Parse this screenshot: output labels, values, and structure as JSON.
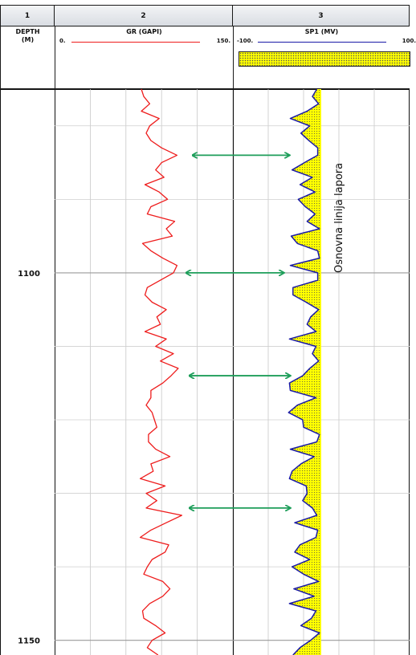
{
  "tracks": [
    {
      "number": "1",
      "title": "DEPTH\n(M)"
    },
    {
      "number": "2",
      "title": "GR (GAPI)",
      "scale_min": "0.",
      "scale_max": "150.",
      "color": "#ee1c1c"
    },
    {
      "number": "3",
      "title": "SP1 (MV)",
      "scale_min": "-100.",
      "scale_max": "100.",
      "color": "#1a1aa8",
      "fill_color": "#ffff00"
    }
  ],
  "annotation": "Osnovna linija lapora",
  "arrow_color": "#1e9e5a",
  "chart_data": {
    "type": "line",
    "title": "",
    "depth_unit": "M",
    "y_axis": "depth",
    "ylim": [
      1075,
      1152
    ],
    "depth_ticks": [
      1100,
      1150
    ],
    "depth_tick_labels": [
      "1100",
      "1150"
    ],
    "grid": true,
    "series": [
      {
        "name": "GR (GAPI)",
        "xlim": [
          0,
          150
        ],
        "depth": [
          1075.0,
          1076.0,
          1077.0,
          1078.0,
          1079.0,
          1080.0,
          1081.0,
          1082.0,
          1083.0,
          1084.0,
          1085.0,
          1086.0,
          1087.0,
          1088.0,
          1089.0,
          1090.0,
          1091.0,
          1092.0,
          1093.0,
          1094.0,
          1095.0,
          1096.0,
          1097.0,
          1098.0,
          1099.0,
          1100.0,
          1101.0,
          1102.0,
          1103.0,
          1104.0,
          1105.0,
          1106.0,
          1107.0,
          1108.0,
          1109.0,
          1110.0,
          1111.0,
          1112.0,
          1113.0,
          1114.0,
          1115.0,
          1116.0,
          1117.0,
          1118.0,
          1119.0,
          1120.0,
          1121.0,
          1122.0,
          1123.0,
          1124.0,
          1125.0,
          1126.0,
          1127.0,
          1128.0,
          1129.0,
          1130.0,
          1131.0,
          1132.0,
          1133.0,
          1134.0,
          1135.0,
          1136.0,
          1137.0,
          1138.0,
          1139.0,
          1140.0,
          1141.0,
          1142.0,
          1143.0,
          1144.0,
          1145.0,
          1146.0,
          1147.0,
          1148.0,
          1149.0,
          1150.0,
          1151.0,
          1152.0
        ],
        "values": [
          73,
          75,
          80,
          73,
          88,
          80,
          77,
          81,
          90,
          103,
          90,
          85,
          92,
          76,
          88,
          95,
          81,
          78,
          101,
          94,
          99,
          74,
          81,
          91,
          103,
          100,
          89,
          78,
          76,
          82,
          94,
          86,
          89,
          76,
          94,
          85,
          100,
          89,
          104,
          98,
          91,
          81,
          81,
          77,
          82,
          84,
          86,
          79,
          79,
          85,
          97,
          81,
          83,
          72,
          93,
          77,
          86,
          77,
          107,
          94,
          81,
          72,
          96,
          93,
          82,
          78,
          75,
          91,
          97,
          91,
          80,
          74,
          75,
          85,
          93,
          82,
          78,
          87
        ]
      },
      {
        "name": "SP1 (MV)",
        "xlim": [
          -100,
          100
        ],
        "depth": [
          1075.0,
          1076.0,
          1077.0,
          1078.0,
          1079.0,
          1080.0,
          1081.0,
          1082.0,
          1083.0,
          1084.0,
          1085.0,
          1086.0,
          1087.0,
          1088.0,
          1089.0,
          1090.0,
          1091.0,
          1092.0,
          1093.0,
          1094.0,
          1095.0,
          1096.0,
          1097.0,
          1098.0,
          1099.0,
          1100.0,
          1101.0,
          1102.0,
          1103.0,
          1104.0,
          1105.0,
          1106.0,
          1107.0,
          1108.0,
          1109.0,
          1110.0,
          1111.0,
          1112.0,
          1113.0,
          1114.0,
          1115.0,
          1116.0,
          1117.0,
          1118.0,
          1119.0,
          1120.0,
          1121.0,
          1122.0,
          1123.0,
          1124.0,
          1125.0,
          1126.0,
          1127.0,
          1128.0,
          1129.0,
          1130.0,
          1131.0,
          1132.0,
          1133.0,
          1134.0,
          1135.0,
          1136.0,
          1137.0,
          1138.0,
          1139.0,
          1140.0,
          1141.0,
          1142.0,
          1143.0,
          1144.0,
          1145.0,
          1146.0,
          1147.0,
          1148.0,
          1149.0,
          1150.0,
          1151.0,
          1152.0
        ],
        "values": [
          -5,
          -10,
          -3,
          -16,
          -35,
          -13,
          -23,
          -14,
          -4,
          -4,
          -19,
          -33,
          -10,
          -24,
          -7,
          -26,
          -18,
          -7,
          -16,
          -2,
          -34,
          -27,
          -4,
          -2,
          -35,
          -4,
          -4,
          -32,
          -32,
          -17,
          -3,
          -12,
          -16,
          -6,
          -36,
          -6,
          -10,
          -3,
          -13,
          -21,
          -36,
          -35,
          -6,
          -27,
          -37,
          -21,
          -20,
          -2,
          -5,
          -35,
          -8,
          -23,
          -33,
          -36,
          -17,
          -16,
          -21,
          -10,
          -5,
          -30,
          -4,
          -6,
          -24,
          -30,
          -13,
          -33,
          -20,
          -3,
          -31,
          -8,
          -36,
          -6,
          -11,
          -23,
          -2,
          -12,
          -24,
          -32
        ]
      },
      {
        "name": "Osnovna linija lapora",
        "xlim": [
          -100,
          100
        ],
        "value": 0
      }
    ],
    "arrows_depth": [
      1084,
      1100,
      1114,
      1132
    ]
  }
}
